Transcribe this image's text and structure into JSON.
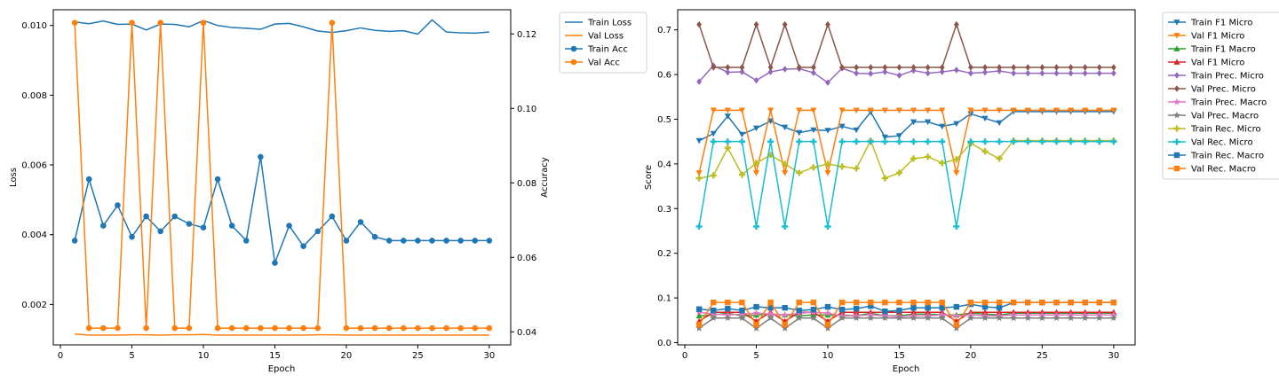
{
  "chart_data": [
    {
      "type": "line",
      "xlabel": "Epoch",
      "ylabel": "Loss",
      "ylabel_right": "Accuracy",
      "xlim": [
        -0.5,
        31.5
      ],
      "ylim": [
        0.00084,
        0.01045
      ],
      "ylim_right": [
        0.0365,
        0.1265
      ],
      "x_ticks": [
        0,
        5,
        10,
        15,
        20,
        25,
        30
      ],
      "y_ticks": [
        0.002,
        0.004,
        0.006,
        0.008,
        0.01
      ],
      "y_tick_labels": [
        "0.002",
        "0.004",
        "0.006",
        "0.008",
        "0.010"
      ],
      "y_ticks_right": [
        0.04,
        0.06,
        0.08,
        0.1,
        0.12
      ],
      "y_tick_labels_right": [
        "0.04",
        "0.06",
        "0.08",
        "0.10",
        "0.12"
      ],
      "grid": false,
      "legend_position": "outside-right",
      "x": [
        1,
        2,
        3,
        4,
        5,
        6,
        7,
        8,
        9,
        10,
        11,
        12,
        13,
        14,
        15,
        16,
        17,
        18,
        19,
        20,
        21,
        22,
        23,
        24,
        25,
        26,
        27,
        28,
        29,
        30
      ],
      "series": [
        {
          "name": "Train Loss",
          "axis": "left",
          "color": "#1f77b4",
          "marker": "none",
          "values": [
            0.0101,
            0.01005,
            0.01013,
            0.01003,
            0.01004,
            0.00987,
            0.01004,
            0.01003,
            0.00996,
            0.01014,
            0.01,
            0.00994,
            0.00992,
            0.00989,
            0.01004,
            0.01006,
            0.00996,
            0.00984,
            0.0098,
            0.00985,
            0.00993,
            0.00986,
            0.00983,
            0.00985,
            0.00975,
            0.01016,
            0.00981,
            0.00979,
            0.00978,
            0.00981
          ]
        },
        {
          "name": "Val Loss",
          "axis": "left",
          "color": "#ff7f0e",
          "marker": "none",
          "values": [
            0.00115,
            0.00112,
            0.00112,
            0.00112,
            0.00113,
            0.00113,
            0.00112,
            0.00113,
            0.00113,
            0.00114,
            0.00112,
            0.00112,
            0.00112,
            0.00112,
            0.00112,
            0.00112,
            0.00112,
            0.00113,
            0.00113,
            0.00112,
            0.00112,
            0.00112,
            0.00112,
            0.00112,
            0.00112,
            0.00112,
            0.00112,
            0.00112,
            0.00112,
            0.00112
          ]
        },
        {
          "name": "Train Acc",
          "axis": "right",
          "color": "#1f77b4",
          "marker": "circle",
          "values": [
            0.0645,
            0.081,
            0.0685,
            0.074,
            0.0655,
            0.071,
            0.067,
            0.071,
            0.069,
            0.068,
            0.081,
            0.0685,
            0.0645,
            0.087,
            0.0585,
            0.0685,
            0.063,
            0.067,
            0.071,
            0.0645,
            0.0695,
            0.0655,
            0.0645,
            0.0645,
            0.0645,
            0.0645,
            0.0645,
            0.0645,
            0.0645,
            0.0645
          ]
        },
        {
          "name": "Val Acc",
          "axis": "right",
          "color": "#ff7f0e",
          "marker": "circle",
          "values": [
            0.123,
            0.041,
            0.041,
            0.041,
            0.123,
            0.041,
            0.123,
            0.041,
            0.041,
            0.123,
            0.041,
            0.041,
            0.041,
            0.041,
            0.041,
            0.041,
            0.041,
            0.041,
            0.123,
            0.041,
            0.041,
            0.041,
            0.041,
            0.041,
            0.041,
            0.041,
            0.041,
            0.041,
            0.041,
            0.041
          ]
        }
      ]
    },
    {
      "type": "line",
      "xlabel": "Epoch",
      "ylabel": "Score",
      "xlim": [
        -0.5,
        31.5
      ],
      "ylim": [
        -0.005,
        0.745
      ],
      "x_ticks": [
        0,
        5,
        10,
        15,
        20,
        25,
        30
      ],
      "y_ticks": [
        0.0,
        0.1,
        0.2,
        0.3,
        0.4,
        0.5,
        0.6,
        0.7
      ],
      "y_tick_labels": [
        "0.0",
        "0.1",
        "0.2",
        "0.3",
        "0.4",
        "0.5",
        "0.6",
        "0.7"
      ],
      "grid": false,
      "legend_position": "outside-right",
      "x": [
        1,
        2,
        3,
        4,
        5,
        6,
        7,
        8,
        9,
        10,
        11,
        12,
        13,
        14,
        15,
        16,
        17,
        18,
        19,
        20,
        21,
        22,
        23,
        24,
        25,
        26,
        27,
        28,
        29,
        30
      ],
      "series": [
        {
          "name": "Train F1 Micro",
          "color": "#1f77b4",
          "marker": "triangle-down",
          "values": [
            0.452,
            0.468,
            0.507,
            0.466,
            0.48,
            0.496,
            0.482,
            0.47,
            0.476,
            0.475,
            0.484,
            0.476,
            0.516,
            0.46,
            0.463,
            0.494,
            0.494,
            0.484,
            0.49,
            0.512,
            0.502,
            0.492,
            0.517,
            0.517,
            0.517,
            0.517,
            0.517,
            0.517,
            0.517,
            0.517
          ]
        },
        {
          "name": "Val F1 Micro",
          "color": "#ff7f0e",
          "marker": "triangle-down",
          "values": [
            0.38,
            0.52,
            0.52,
            0.52,
            0.38,
            0.52,
            0.38,
            0.52,
            0.52,
            0.38,
            0.52,
            0.52,
            0.52,
            0.52,
            0.52,
            0.52,
            0.52,
            0.52,
            0.38,
            0.52,
            0.52,
            0.52,
            0.52,
            0.52,
            0.52,
            0.52,
            0.52,
            0.52,
            0.52,
            0.52
          ]
        },
        {
          "name": "Train F1 Macro",
          "color": "#2ca02c",
          "marker": "triangle-up",
          "values": [
            0.06,
            0.062,
            0.066,
            0.06,
            0.062,
            0.064,
            0.062,
            0.06,
            0.062,
            0.062,
            0.062,
            0.06,
            0.066,
            0.06,
            0.06,
            0.064,
            0.064,
            0.062,
            0.062,
            0.066,
            0.064,
            0.062,
            0.066,
            0.066,
            0.066,
            0.066,
            0.066,
            0.066,
            0.066,
            0.066
          ]
        },
        {
          "name": "Val F1 Micro",
          "color": "#d62728",
          "marker": "triangle-up",
          "values": [
            0.048,
            0.068,
            0.068,
            0.068,
            0.048,
            0.068,
            0.048,
            0.068,
            0.068,
            0.048,
            0.068,
            0.068,
            0.068,
            0.068,
            0.068,
            0.068,
            0.068,
            0.068,
            0.048,
            0.068,
            0.068,
            0.068,
            0.068,
            0.068,
            0.068,
            0.068,
            0.068,
            0.068,
            0.068,
            0.068
          ]
        },
        {
          "name": "Train Prec. Micro",
          "color": "#9467bd",
          "marker": "diamond",
          "values": [
            0.584,
            0.62,
            0.605,
            0.606,
            0.587,
            0.606,
            0.612,
            0.613,
            0.604,
            0.582,
            0.614,
            0.603,
            0.602,
            0.606,
            0.598,
            0.609,
            0.603,
            0.606,
            0.61,
            0.603,
            0.605,
            0.608,
            0.603,
            0.603,
            0.603,
            0.603,
            0.603,
            0.603,
            0.603,
            0.603
          ]
        },
        {
          "name": "Val Prec. Micro",
          "color": "#8c564b",
          "marker": "diamond",
          "values": [
            0.712,
            0.616,
            0.616,
            0.616,
            0.712,
            0.616,
            0.712,
            0.616,
            0.616,
            0.712,
            0.616,
            0.616,
            0.616,
            0.616,
            0.616,
            0.616,
            0.616,
            0.616,
            0.712,
            0.616,
            0.616,
            0.616,
            0.616,
            0.616,
            0.616,
            0.616,
            0.616,
            0.616,
            0.616,
            0.616
          ]
        },
        {
          "name": "Train Prec. Macro",
          "color": "#e377c2",
          "marker": "star",
          "values": [
            0.068,
            0.064,
            0.062,
            0.064,
            0.066,
            0.064,
            0.062,
            0.066,
            0.068,
            0.066,
            0.06,
            0.06,
            0.062,
            0.06,
            0.058,
            0.06,
            0.06,
            0.062,
            0.06,
            0.062,
            0.06,
            0.06,
            0.062,
            0.062,
            0.062,
            0.062,
            0.062,
            0.062,
            0.062,
            0.062
          ]
        },
        {
          "name": "Val Prec. Macro",
          "color": "#7f7f7f",
          "marker": "star",
          "values": [
            0.032,
            0.055,
            0.055,
            0.055,
            0.032,
            0.055,
            0.032,
            0.055,
            0.055,
            0.032,
            0.055,
            0.055,
            0.055,
            0.055,
            0.055,
            0.055,
            0.055,
            0.055,
            0.032,
            0.055,
            0.055,
            0.055,
            0.055,
            0.055,
            0.055,
            0.055,
            0.055,
            0.055,
            0.055,
            0.055
          ]
        },
        {
          "name": "Train Rec. Micro",
          "color": "#bcbd22",
          "marker": "plus",
          "values": [
            0.368,
            0.374,
            0.436,
            0.376,
            0.402,
            0.42,
            0.4,
            0.38,
            0.392,
            0.4,
            0.394,
            0.39,
            0.452,
            0.368,
            0.38,
            0.412,
            0.416,
            0.402,
            0.41,
            0.446,
            0.428,
            0.412,
            0.452,
            0.452,
            0.452,
            0.452,
            0.452,
            0.452,
            0.452,
            0.452
          ]
        },
        {
          "name": "Val Rec. Micro",
          "color": "#17becf",
          "marker": "plus",
          "values": [
            0.26,
            0.45,
            0.45,
            0.45,
            0.26,
            0.45,
            0.26,
            0.45,
            0.45,
            0.26,
            0.45,
            0.45,
            0.45,
            0.45,
            0.45,
            0.45,
            0.45,
            0.45,
            0.26,
            0.45,
            0.45,
            0.45,
            0.45,
            0.45,
            0.45,
            0.45,
            0.45,
            0.45,
            0.45,
            0.45
          ]
        },
        {
          "name": "Train Rec. Macro",
          "color": "#1f77b4",
          "marker": "square",
          "values": [
            0.075,
            0.072,
            0.076,
            0.072,
            0.08,
            0.078,
            0.078,
            0.072,
            0.074,
            0.08,
            0.074,
            0.076,
            0.082,
            0.07,
            0.072,
            0.078,
            0.078,
            0.078,
            0.08,
            0.086,
            0.08,
            0.078,
            0.09,
            0.09,
            0.09,
            0.09,
            0.09,
            0.09,
            0.09,
            0.09
          ]
        },
        {
          "name": "Val Rec. Macro",
          "color": "#ff7f0e",
          "marker": "square",
          "values": [
            0.04,
            0.09,
            0.09,
            0.09,
            0.04,
            0.09,
            0.04,
            0.09,
            0.09,
            0.04,
            0.09,
            0.09,
            0.09,
            0.09,
            0.09,
            0.09,
            0.09,
            0.09,
            0.04,
            0.09,
            0.09,
            0.09,
            0.09,
            0.09,
            0.09,
            0.09,
            0.09,
            0.09,
            0.09,
            0.09
          ]
        }
      ]
    }
  ]
}
